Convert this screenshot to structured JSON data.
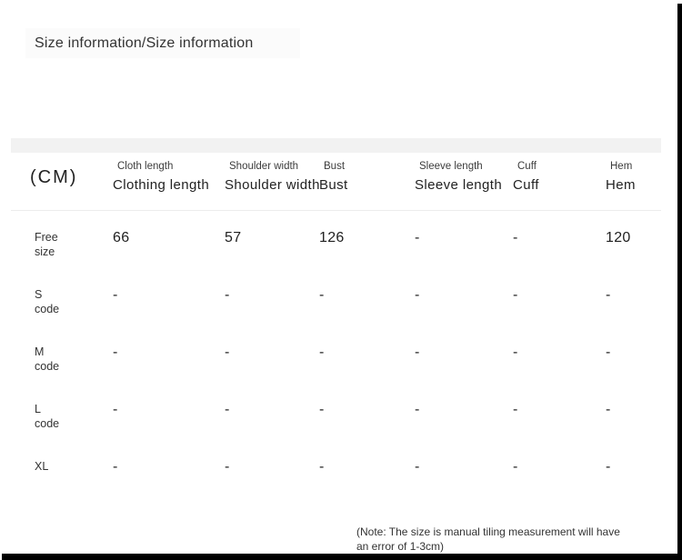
{
  "page": {
    "title": "Size information/Size information",
    "note_line1": "(Note: The size is manual tiling measurement will have",
    "note_line2": "an error of 1-3cm)"
  },
  "table": {
    "unit_label": "(CM)",
    "columns": [
      {
        "top": "Cloth length",
        "bottom": "Clothing length"
      },
      {
        "top": "Shoulder width",
        "bottom": "Shoulder width"
      },
      {
        "top": "Bust",
        "bottom": "Bust"
      },
      {
        "top": "Sleeve length",
        "bottom": "Sleeve length"
      },
      {
        "top": "Cuff",
        "bottom": "Cuff"
      },
      {
        "top": "Hem",
        "bottom": "Hem"
      }
    ],
    "rows": [
      {
        "label_line1": "Free",
        "label_line2": "size",
        "values": [
          "66",
          "57",
          "126",
          "-",
          "-",
          "120"
        ]
      },
      {
        "label_line1": "S",
        "label_line2": "code",
        "values": [
          "-",
          "-",
          "-",
          "-",
          "-",
          "-"
        ]
      },
      {
        "label_line1": "M",
        "label_line2": "code",
        "values": [
          "-",
          "-",
          "-",
          "-",
          "-",
          "-"
        ]
      },
      {
        "label_line1": "L",
        "label_line2": "code",
        "values": [
          "-",
          "-",
          "-",
          "-",
          "-",
          "-"
        ]
      },
      {
        "label_line1": "XL",
        "label_line2": "",
        "values": [
          "-",
          "-",
          "-",
          "-",
          "-",
          "-"
        ]
      }
    ]
  },
  "colors": {
    "background": "#ffffff",
    "gray_band": "#f2f2f2",
    "divider": "#ececec",
    "text_primary": "#222222",
    "text_secondary": "#333333",
    "frame_border": "#000000"
  }
}
